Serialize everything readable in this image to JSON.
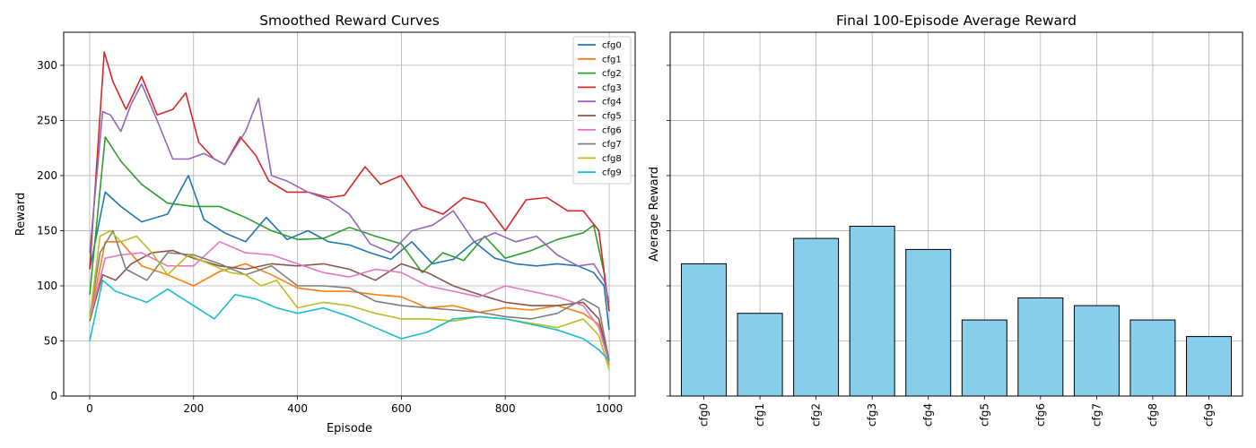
{
  "chart_data": [
    {
      "type": "line",
      "title": "Smoothed Reward Curves",
      "xlabel": "Episode",
      "ylabel": "Reward",
      "xlim": [
        -50,
        1050
      ],
      "ylim": [
        0,
        330
      ],
      "xticks": [
        0,
        200,
        400,
        600,
        800,
        1000
      ],
      "yticks": [
        0,
        50,
        100,
        150,
        200,
        250,
        300
      ],
      "grid": true,
      "legend_position": "top-right",
      "series": [
        {
          "name": "cfg0",
          "color": "#1f77b4",
          "x": [
            0,
            30,
            60,
            100,
            150,
            190,
            220,
            260,
            300,
            340,
            380,
            420,
            460,
            500,
            540,
            580,
            620,
            660,
            700,
            740,
            780,
            820,
            860,
            900,
            940,
            970,
            990,
            1000
          ],
          "y": [
            115,
            185,
            172,
            158,
            165,
            200,
            160,
            148,
            140,
            162,
            142,
            150,
            140,
            137,
            130,
            124,
            140,
            120,
            124,
            140,
            125,
            120,
            118,
            120,
            118,
            112,
            100,
            60
          ]
        },
        {
          "name": "cfg1",
          "color": "#ff7f0e",
          "x": [
            0,
            30,
            60,
            100,
            150,
            200,
            250,
            300,
            350,
            400,
            450,
            500,
            550,
            600,
            650,
            700,
            750,
            800,
            850,
            900,
            950,
            980,
            1000
          ],
          "y": [
            70,
            140,
            140,
            118,
            110,
            100,
            113,
            120,
            110,
            98,
            95,
            95,
            92,
            90,
            80,
            82,
            76,
            80,
            78,
            82,
            75,
            65,
            28
          ]
        },
        {
          "name": "cfg2",
          "color": "#2ca02c",
          "x": [
            0,
            30,
            60,
            100,
            150,
            200,
            250,
            300,
            350,
            400,
            450,
            500,
            550,
            600,
            640,
            680,
            720,
            760,
            800,
            850,
            900,
            950,
            970,
            990,
            1000
          ],
          "y": [
            92,
            235,
            213,
            192,
            175,
            172,
            172,
            162,
            150,
            142,
            143,
            153,
            145,
            138,
            112,
            130,
            123,
            145,
            125,
            132,
            142,
            148,
            155,
            112,
            77
          ]
        },
        {
          "name": "cfg3",
          "color": "#d62728",
          "x": [
            0,
            28,
            45,
            70,
            100,
            130,
            160,
            185,
            210,
            240,
            260,
            290,
            320,
            345,
            380,
            420,
            460,
            490,
            530,
            560,
            600,
            640,
            680,
            720,
            760,
            800,
            840,
            880,
            920,
            950,
            980,
            1000
          ],
          "y": [
            115,
            312,
            285,
            260,
            290,
            255,
            260,
            275,
            230,
            215,
            210,
            235,
            218,
            195,
            185,
            185,
            180,
            182,
            208,
            192,
            200,
            172,
            165,
            180,
            175,
            150,
            178,
            180,
            168,
            168,
            150,
            77
          ]
        },
        {
          "name": "cfg4",
          "color": "#9467bd",
          "x": [
            0,
            25,
            40,
            60,
            80,
            100,
            130,
            160,
            190,
            220,
            260,
            300,
            325,
            350,
            380,
            420,
            460,
            500,
            540,
            580,
            620,
            660,
            700,
            740,
            780,
            820,
            860,
            900,
            940,
            970,
            990,
            1000
          ],
          "y": [
            130,
            258,
            255,
            240,
            265,
            283,
            250,
            215,
            215,
            220,
            210,
            240,
            270,
            200,
            195,
            185,
            178,
            165,
            138,
            130,
            150,
            155,
            168,
            140,
            148,
            140,
            145,
            128,
            118,
            120,
            105,
            85
          ]
        },
        {
          "name": "cfg5",
          "color": "#8c564b",
          "x": [
            0,
            25,
            50,
            80,
            120,
            160,
            200,
            250,
            300,
            350,
            400,
            450,
            500,
            550,
            600,
            650,
            700,
            750,
            800,
            850,
            900,
            950,
            980,
            1000
          ],
          "y": [
            68,
            110,
            105,
            120,
            130,
            132,
            125,
            118,
            115,
            120,
            118,
            120,
            115,
            105,
            120,
            112,
            100,
            92,
            85,
            82,
            82,
            85,
            70,
            32
          ]
        },
        {
          "name": "cfg6",
          "color": "#e377c2",
          "x": [
            0,
            30,
            60,
            100,
            150,
            200,
            250,
            300,
            350,
            400,
            450,
            500,
            550,
            600,
            650,
            700,
            750,
            800,
            850,
            900,
            950,
            980,
            1000
          ],
          "y": [
            70,
            125,
            128,
            130,
            118,
            118,
            140,
            130,
            128,
            120,
            112,
            108,
            115,
            112,
            100,
            95,
            90,
            100,
            95,
            90,
            82,
            62,
            30
          ]
        },
        {
          "name": "cfg7",
          "color": "#7f7f7f",
          "x": [
            0,
            20,
            45,
            70,
            110,
            150,
            200,
            250,
            300,
            350,
            400,
            450,
            500,
            550,
            600,
            650,
            700,
            750,
            800,
            850,
            900,
            950,
            980,
            1000
          ],
          "y": [
            72,
            130,
            150,
            115,
            105,
            130,
            128,
            120,
            110,
            118,
            100,
            100,
            98,
            86,
            82,
            80,
            78,
            76,
            72,
            70,
            75,
            88,
            80,
            32
          ]
        },
        {
          "name": "cfg8",
          "color": "#bcbd22",
          "x": [
            0,
            20,
            40,
            60,
            90,
            120,
            150,
            190,
            230,
            270,
            300,
            330,
            360,
            400,
            450,
            500,
            550,
            600,
            650,
            700,
            750,
            800,
            850,
            900,
            950,
            980,
            1000
          ],
          "y": [
            70,
            145,
            150,
            140,
            145,
            130,
            110,
            128,
            120,
            112,
            110,
            100,
            105,
            80,
            85,
            82,
            75,
            70,
            70,
            68,
            72,
            70,
            66,
            62,
            70,
            55,
            24
          ]
        },
        {
          "name": "cfg9",
          "color": "#17becf",
          "x": [
            0,
            25,
            50,
            80,
            110,
            150,
            200,
            240,
            280,
            320,
            360,
            400,
            450,
            500,
            550,
            600,
            650,
            700,
            750,
            800,
            850,
            900,
            950,
            980,
            1000
          ],
          "y": [
            50,
            105,
            95,
            90,
            85,
            97,
            82,
            70,
            92,
            88,
            80,
            75,
            80,
            72,
            62,
            52,
            58,
            70,
            72,
            70,
            65,
            60,
            52,
            42,
            32
          ]
        }
      ]
    },
    {
      "type": "bar",
      "title": "Final 100-Episode Average Reward",
      "xlabel": "",
      "ylabel": "Average Reward",
      "categories": [
        "cfg0",
        "cfg1",
        "cfg2",
        "cfg3",
        "cfg4",
        "cfg5",
        "cfg6",
        "cfg7",
        "cfg8",
        "cfg9"
      ],
      "values": [
        120,
        75,
        143,
        154,
        133,
        69,
        89,
        82,
        69,
        54
      ],
      "ylim": [
        0,
        330
      ],
      "yticks": [
        0,
        50,
        100,
        150,
        200,
        250,
        300
      ],
      "bar_color": "#87ceeb",
      "grid": true,
      "sharey": true
    }
  ]
}
